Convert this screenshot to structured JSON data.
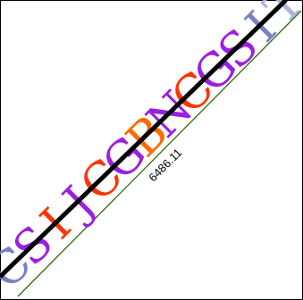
{
  "measure_label": "6486.11",
  "baseline_glyphs": [
    {
      "char": "C",
      "color": "#7a7fc4"
    },
    {
      "char": "S",
      "color": "#9b1fe0"
    },
    {
      "char": "I",
      "color": "#ff3300"
    },
    {
      "char": "J",
      "color": "#9b1fe0"
    },
    {
      "char": "C",
      "color": "#ff3300"
    },
    {
      "char": "G",
      "color": "#9b1fe0"
    },
    {
      "char": "B",
      "color": "#ff6a00"
    },
    {
      "char": "N",
      "color": "#9b1fe0"
    },
    {
      "char": "C",
      "color": "#ff3300"
    },
    {
      "char": "G",
      "color": "#9b1fe0"
    },
    {
      "char": "S",
      "color": "#9b1fe0"
    },
    {
      "char": "I",
      "color": "#7a7fc4"
    },
    {
      "char": "T",
      "color": "#a9b6dc"
    }
  ],
  "colors": {
    "thick_line": "#000000",
    "thin_line": "#2e6b0e",
    "frame": "#000000"
  }
}
